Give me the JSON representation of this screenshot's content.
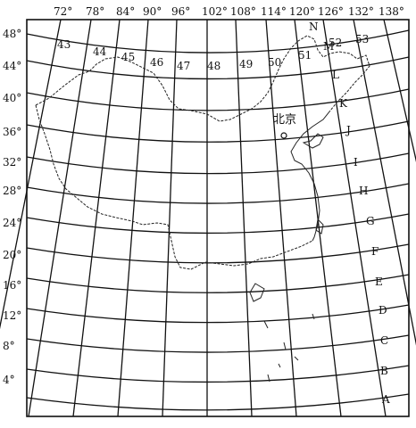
{
  "map": {
    "longitude_labels": [
      "72°",
      "78°",
      "84°",
      "90°",
      "96°",
      "102°",
      "108°",
      "114°",
      "120°",
      "126°",
      "132°",
      "138°"
    ],
    "latitude_labels": [
      "48°",
      "44°",
      "40°",
      "36°",
      "32°",
      "28°",
      "24°",
      "20°",
      "16°",
      "12°",
      "8°",
      "4°"
    ],
    "zone_labels": [
      "43",
      "44",
      "45",
      "46",
      "47",
      "48",
      "49",
      "50",
      "51",
      "52",
      "53"
    ],
    "row_labels": [
      "N",
      "M",
      "L",
      "K",
      "J",
      "I",
      "H",
      "G",
      "F",
      "E",
      "D",
      "C",
      "B",
      "A"
    ],
    "city_label": "北京",
    "colors": {
      "ink": "#111111",
      "paper": "#ffffff"
    }
  }
}
